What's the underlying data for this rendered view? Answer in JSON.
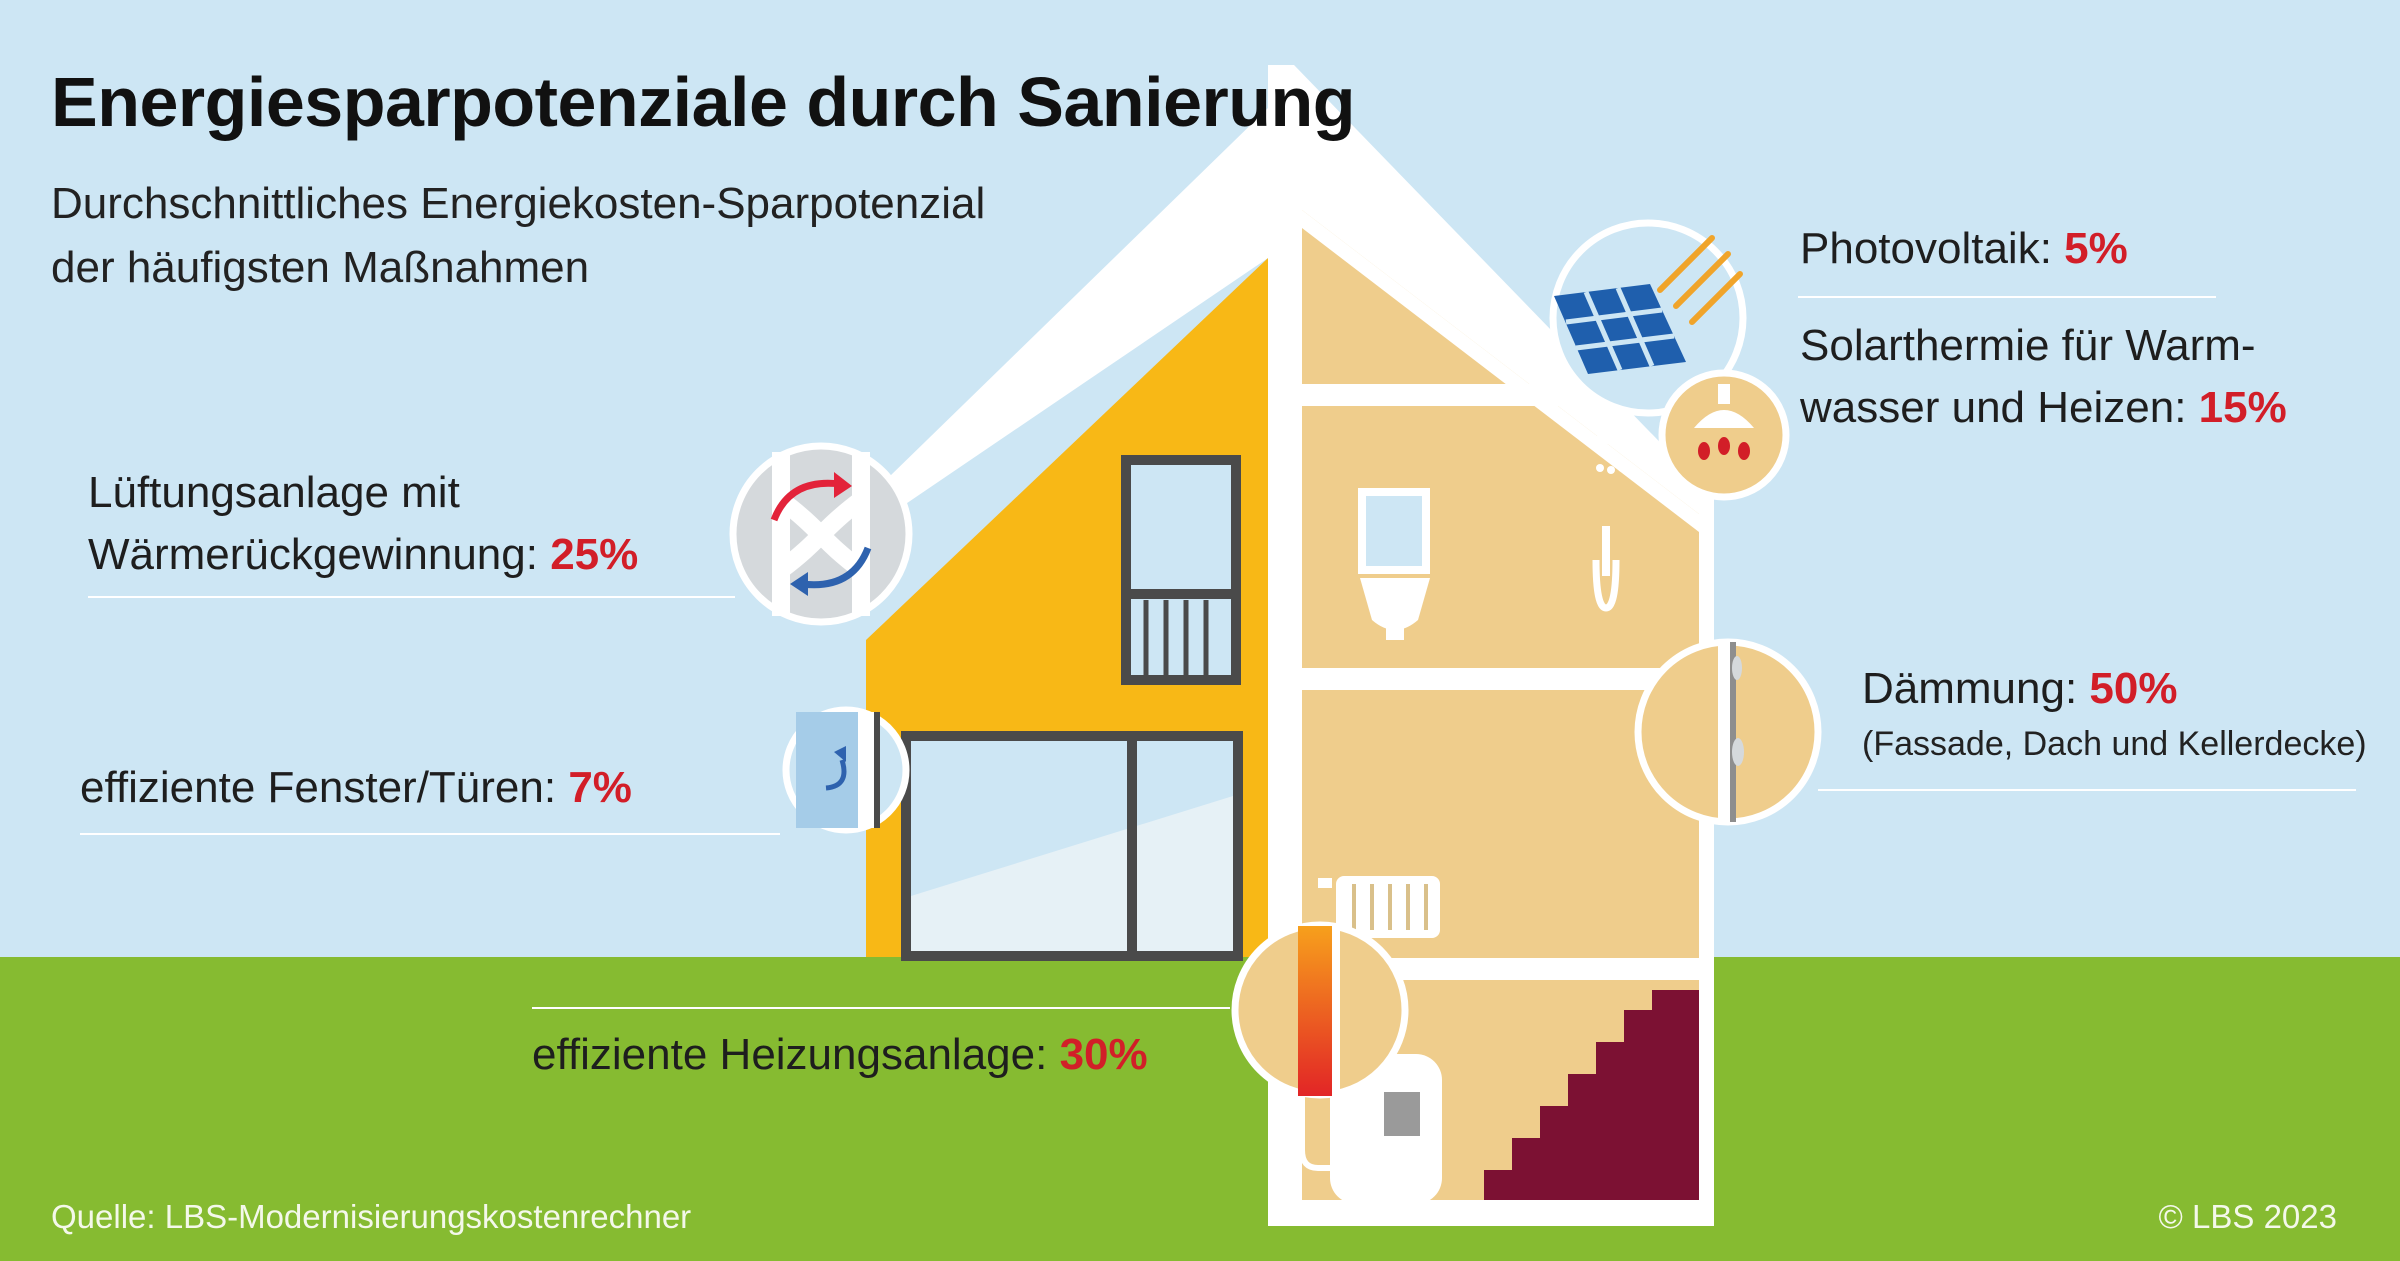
{
  "title": "Energiesparpotenziale durch Sanierung",
  "subtitle_line1": "Durchschnittliches Energiekosten-Sparpotenzial",
  "subtitle_line2": "der häufigsten Maßnahmen",
  "measures": {
    "photovoltaik": {
      "label": "Photovoltaik: ",
      "value": "5%"
    },
    "solarthermie": {
      "label_line1": "Solarthermie für Warm-",
      "label_line2": "wasser und Heizen: ",
      "value": "15%"
    },
    "lueftung": {
      "label_line1": "Lüftungsanlage mit",
      "label_line2": "Wärmerückgewinnung: ",
      "value": "25%"
    },
    "fenster": {
      "label": "effiziente Fenster/Türen: ",
      "value": "7%"
    },
    "daemmung": {
      "label": "Dämmung: ",
      "value": "50%",
      "note": "(Fassade, Dach und Kellerdecke)"
    },
    "heizung": {
      "label": "effiziente Heizungsanlage: ",
      "value": "30%"
    }
  },
  "source": "Quelle: LBS-Modernisierungskostenrechner",
  "copyright": "© LBS 2023",
  "colors": {
    "sky": "#cde6f4",
    "grass": "#86bb31",
    "facade_yellow": "#f8b816",
    "interior_beige": "#efcd8c",
    "stairs": "#7c1133",
    "accent_red": "#d21e28",
    "outline_grey": "#4a4a4a"
  }
}
